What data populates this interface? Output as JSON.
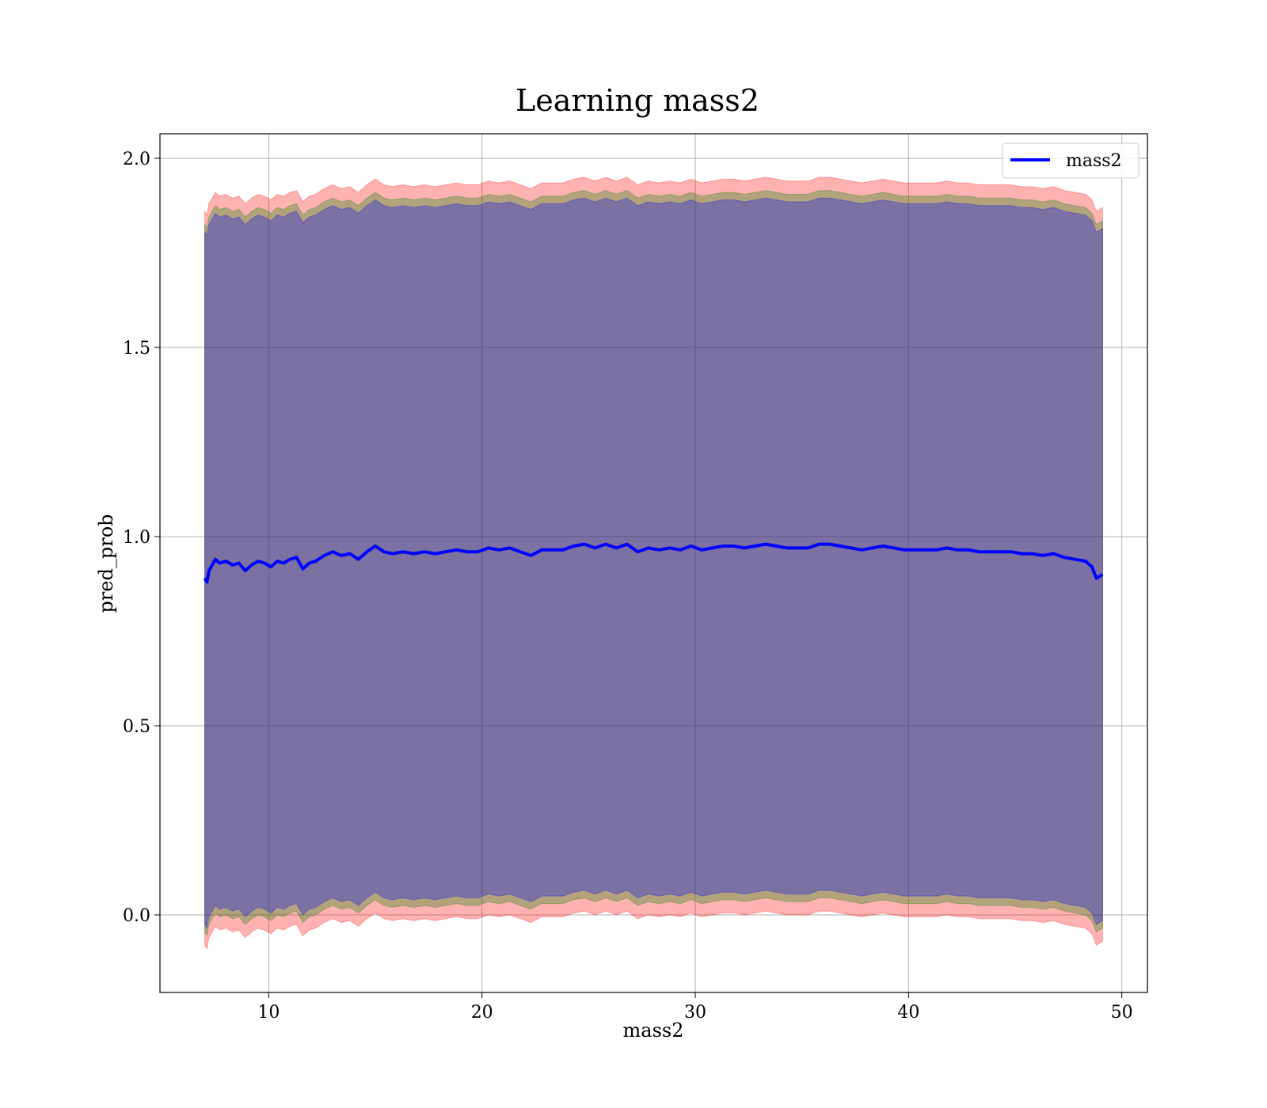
{
  "chart_data": {
    "type": "line",
    "title": "Learning mass2",
    "xlabel": "mass2",
    "ylabel": "pred_prob",
    "xlim": [
      4.9,
      51.2
    ],
    "ylim": [
      -0.205,
      2.065
    ],
    "xticks": [
      10,
      20,
      30,
      40,
      50
    ],
    "yticks": [
      0.0,
      0.5,
      1.0,
      1.5,
      2.0
    ],
    "xtick_labels": [
      "10",
      "20",
      "30",
      "40",
      "50"
    ],
    "ytick_labels": [
      "0.0",
      "0.5",
      "1.0",
      "1.5",
      "2.0"
    ],
    "grid": true,
    "legend_position": "top-right",
    "series": [
      {
        "name": "mass2",
        "color": "#0000ff",
        "x": [
          7.0,
          7.1,
          7.2,
          7.3,
          7.5,
          7.7,
          8.0,
          8.3,
          8.6,
          8.9,
          9.2,
          9.5,
          9.8,
          10.1,
          10.4,
          10.7,
          11.0,
          11.3,
          11.6,
          11.9,
          12.2,
          12.6,
          13.0,
          13.4,
          13.8,
          14.2,
          14.6,
          15.0,
          15.4,
          15.8,
          16.3,
          16.8,
          17.3,
          17.8,
          18.3,
          18.8,
          19.3,
          19.8,
          20.3,
          20.8,
          21.3,
          21.8,
          22.3,
          22.8,
          23.3,
          23.8,
          24.3,
          24.8,
          25.3,
          25.8,
          26.3,
          26.8,
          27.3,
          27.8,
          28.3,
          28.8,
          29.3,
          29.8,
          30.3,
          30.8,
          31.3,
          31.8,
          32.3,
          32.8,
          33.3,
          33.8,
          34.3,
          34.8,
          35.3,
          35.8,
          36.3,
          36.8,
          37.3,
          37.8,
          38.3,
          38.8,
          39.3,
          39.8,
          40.3,
          40.8,
          41.3,
          41.8,
          42.3,
          42.8,
          43.3,
          43.8,
          44.3,
          44.8,
          45.3,
          45.8,
          46.3,
          46.8,
          47.3,
          47.8,
          48.3,
          48.6,
          48.8,
          49.1
        ],
        "y": [
          0.89,
          0.88,
          0.91,
          0.92,
          0.94,
          0.93,
          0.935,
          0.925,
          0.93,
          0.91,
          0.925,
          0.935,
          0.93,
          0.92,
          0.935,
          0.93,
          0.94,
          0.945,
          0.915,
          0.93,
          0.935,
          0.95,
          0.96,
          0.95,
          0.955,
          0.94,
          0.96,
          0.975,
          0.96,
          0.955,
          0.96,
          0.955,
          0.96,
          0.955,
          0.96,
          0.965,
          0.96,
          0.96,
          0.97,
          0.965,
          0.97,
          0.96,
          0.95,
          0.965,
          0.965,
          0.965,
          0.975,
          0.98,
          0.97,
          0.98,
          0.97,
          0.98,
          0.96,
          0.97,
          0.965,
          0.97,
          0.965,
          0.975,
          0.965,
          0.97,
          0.975,
          0.975,
          0.97,
          0.975,
          0.98,
          0.975,
          0.97,
          0.97,
          0.97,
          0.98,
          0.98,
          0.975,
          0.97,
          0.965,
          0.97,
          0.975,
          0.97,
          0.965,
          0.965,
          0.965,
          0.965,
          0.97,
          0.965,
          0.965,
          0.96,
          0.96,
          0.96,
          0.96,
          0.955,
          0.955,
          0.95,
          0.955,
          0.945,
          0.94,
          0.935,
          0.92,
          0.89,
          0.9
        ]
      }
    ],
    "bands": [
      {
        "color": "#ff0000",
        "opacity": 0.3,
        "upper_offset": 0.97,
        "lower_offset": 0.97
      },
      {
        "color": "#008000",
        "opacity": 0.3,
        "upper_offset": 0.935,
        "lower_offset": 0.935
      },
      {
        "color": "#0000ff",
        "opacity": 0.3,
        "upper_offset": 0.915,
        "lower_offset": 0.915
      }
    ]
  }
}
